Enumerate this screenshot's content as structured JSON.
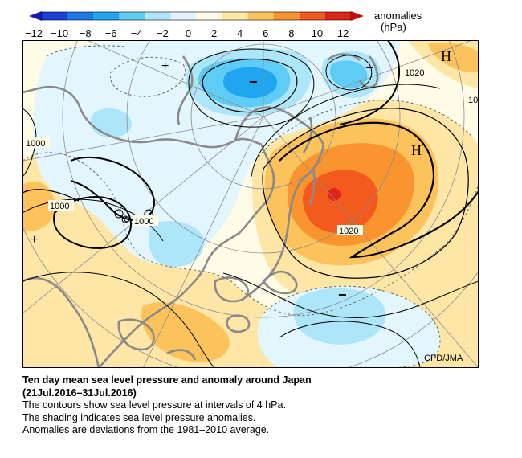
{
  "legend": {
    "title": "anomalies",
    "unit": "(hPa)",
    "ticks": [
      "−12",
      "−10",
      "−8",
      "−6",
      "−4",
      "−2",
      "0",
      "2",
      "4",
      "6",
      "8",
      "10",
      "12"
    ],
    "colors": [
      "#1c3fd8",
      "#1f78ea",
      "#20a6f0",
      "#5fccf5",
      "#aee6f9",
      "#e3f5fd",
      "#fefce6",
      "#fde6a6",
      "#fcc25c",
      "#f9942f",
      "#f35a1e",
      "#e0241a"
    ]
  },
  "map": {
    "credit": "CPD/JMA",
    "high_symbol": "H",
    "low_symbol": "−",
    "plus_symbol": "+",
    "isobar_labels": [
      "1020",
      "1000",
      "1000",
      "1000",
      "1020",
      "10"
    ]
  },
  "caption": {
    "title": "Ten day mean sea level pressure and anomaly around Japan",
    "period": "(21Jul.2016–31Jul.2016)",
    "line1": "The contours show sea level pressure at intervals of 4 hPa.",
    "line2": "The shading indicates sea level pressure anomalies.",
    "line3": "Anomalies are deviations from the 1981–2010 average."
  }
}
